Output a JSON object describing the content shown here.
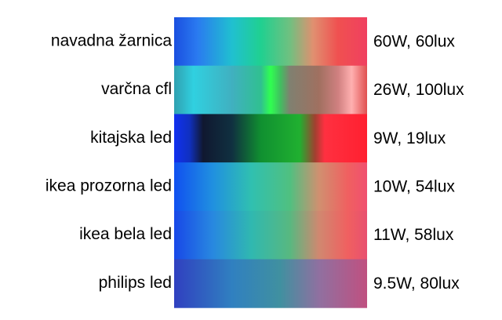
{
  "rows": [
    {
      "label": "navadna žarnica",
      "spec": "60W, 60lux"
    },
    {
      "label": "varčna cfl",
      "spec": "26W, 100lux"
    },
    {
      "label": "kitajska led",
      "spec": "9W, 19lux"
    },
    {
      "label": "ikea prozorna led",
      "spec": "10W, 54lux"
    },
    {
      "label": "ikea bela led",
      "spec": "11W, 58lux"
    },
    {
      "label": "philips led",
      "spec": "9.5W, 80lux"
    }
  ]
}
